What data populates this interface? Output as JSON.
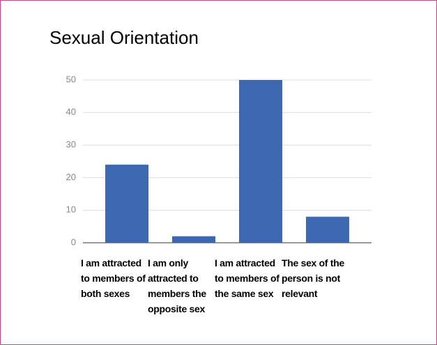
{
  "chart_data": {
    "type": "bar",
    "title": "Sexual Orientation",
    "categories": [
      "I am attracted to members of both sexes",
      "I am only attracted to members the opposite sex",
      "I am attracted to members of the same sex",
      "The sex of the person is not relevant"
    ],
    "values": [
      24,
      2,
      50,
      8
    ],
    "color": "#3d67b1",
    "ylim": [
      0,
      50
    ],
    "yticks": [
      0,
      10,
      20,
      30,
      40,
      50
    ],
    "grid": true
  }
}
